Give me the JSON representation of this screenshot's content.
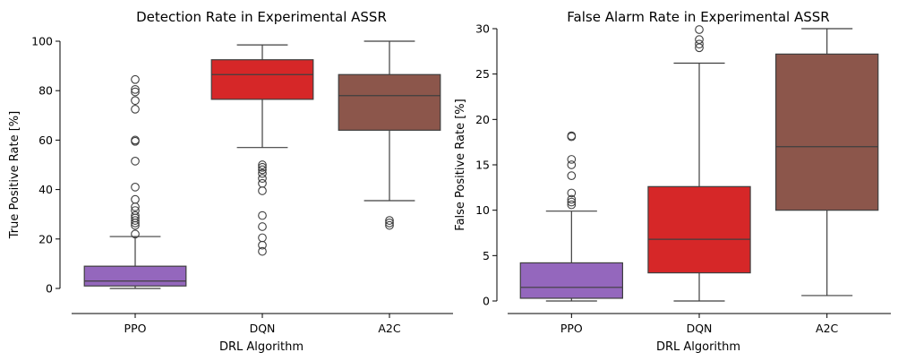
{
  "chart_data": [
    {
      "type": "box",
      "title": "Detection Rate in Experimental ASSR",
      "xlabel": "DRL Algorithm",
      "ylabel": "True Positive Rate [%]",
      "ylim": [
        -8,
        100
      ],
      "yticks": [
        0,
        20,
        40,
        60,
        80,
        100
      ],
      "grid": false,
      "legend": "none",
      "categories": [
        "PPO",
        "DQN",
        "A2C"
      ],
      "boxes": [
        {
          "category": "PPO",
          "color": "#9467bd",
          "whisker_low": 0,
          "q1": 1,
          "median": 3,
          "q3": 9,
          "whisker_high": 21,
          "outliers": [
            22,
            25.5,
            26.5,
            27.5,
            28.5,
            29.5,
            31.5,
            33,
            36,
            41,
            51.5,
            59.5,
            60,
            72.5,
            76,
            79.5,
            80.5,
            84.5
          ]
        },
        {
          "category": "DQN",
          "color": "#d62728",
          "whisker_low": 57,
          "q1": 76.5,
          "median": 86.5,
          "q3": 92.5,
          "whisker_high": 98.5,
          "outliers": [
            15,
            17.5,
            20.5,
            25,
            29.5,
            39.5,
            42.5,
            44.5,
            46.5,
            48,
            49,
            50
          ]
        },
        {
          "category": "A2C",
          "color": "#8c564b",
          "whisker_low": 35.5,
          "q1": 64,
          "median": 78,
          "q3": 86.5,
          "whisker_high": 100,
          "outliers": [
            25.5,
            26.5,
            27.5
          ]
        }
      ]
    },
    {
      "type": "box",
      "title": "False Alarm Rate in Experimental ASSR",
      "xlabel": "DRL Algorithm",
      "ylabel": "False Positive Rate [%]",
      "ylim": [
        0,
        30
      ],
      "yticks": [
        0,
        5,
        10,
        15,
        20,
        25,
        30
      ],
      "grid": false,
      "legend": "none",
      "categories": [
        "PPO",
        "DQN",
        "A2C"
      ],
      "boxes": [
        {
          "category": "PPO",
          "color": "#9467bd",
          "whisker_low": 0,
          "q1": 0.3,
          "median": 1.5,
          "q3": 4.2,
          "whisker_high": 9.9,
          "outliers": [
            10.6,
            10.9,
            11.2,
            11.9,
            13.8,
            15,
            15.6,
            18.1,
            18.2
          ]
        },
        {
          "category": "DQN",
          "color": "#d62728",
          "whisker_low": 0,
          "q1": 3.1,
          "median": 6.8,
          "q3": 12.6,
          "whisker_high": 26.2,
          "outliers": [
            27.9,
            28.3,
            28.8,
            29.9
          ]
        },
        {
          "category": "A2C",
          "color": "#8c564b",
          "whisker_low": 0.6,
          "q1": 10,
          "median": 17,
          "q3": 27.2,
          "whisker_high": 30,
          "outliers": []
        }
      ]
    }
  ]
}
